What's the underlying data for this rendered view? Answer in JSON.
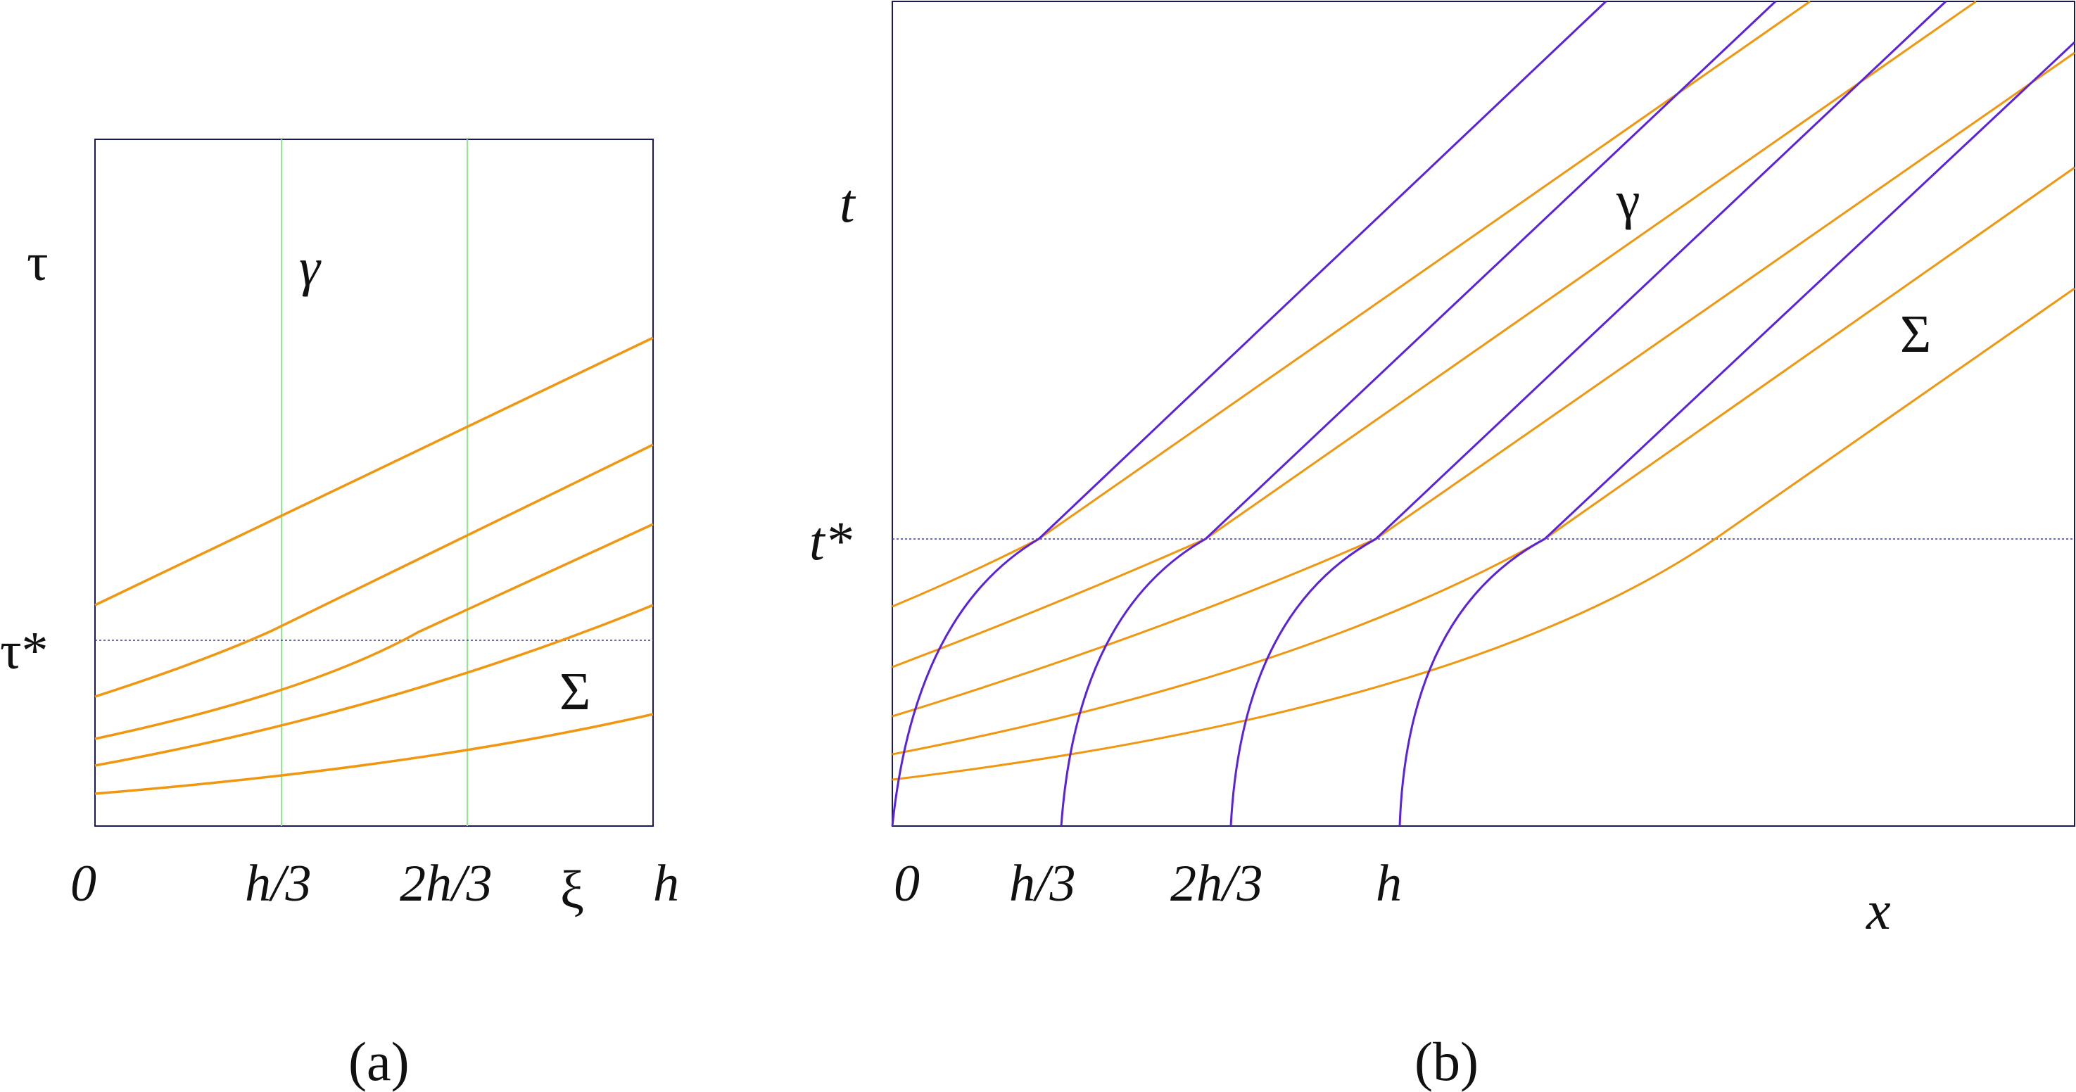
{
  "panel_a": {
    "caption": "(a)",
    "y_axis_label": "τ",
    "y_marker_label": "τ*",
    "x_axis_label": "ξ",
    "x_ticks": [
      "0",
      "h/3",
      "2h/3",
      "h"
    ],
    "curve_family_label_gamma": "γ",
    "curve_family_label_sigma": "Σ"
  },
  "panel_b": {
    "caption": "(b)",
    "y_axis_label": "t",
    "y_marker_label": "t*",
    "x_axis_label": "x",
    "x_ticks": [
      "0",
      "h/3",
      "2h/3",
      "h"
    ],
    "curve_family_label_gamma": "γ",
    "curve_family_label_sigma": "Σ"
  },
  "colors": {
    "sigma_curves": "#f0960f",
    "gamma_lines_a": "#8ee88e",
    "gamma_curves_b": "#5a22e0",
    "marker_line": "#3a3aa0",
    "frame": "#1a1a5a"
  }
}
